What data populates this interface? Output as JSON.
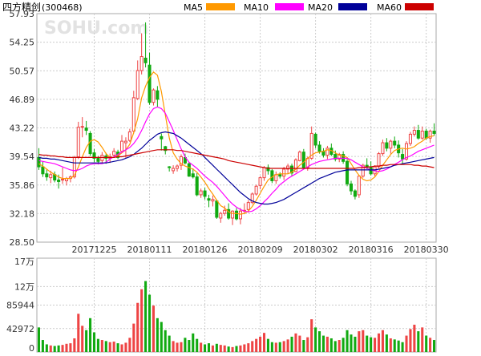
{
  "header": {
    "stock_name": "四方精创",
    "stock_code": "(300468)",
    "watermark": "SOHU.com"
  },
  "legend": [
    {
      "label": "MA5",
      "color": "#ff9900"
    },
    {
      "label": "MA10",
      "color": "#ff00ff"
    },
    {
      "label": "MA20",
      "color": "#000099"
    },
    {
      "label": "MA60",
      "color": "#cc0000"
    }
  ],
  "colors": {
    "up": "#ee4444",
    "down": "#11aa11",
    "grid": "#cccccc",
    "axis_text": "#333333"
  },
  "chart_data": [
    {
      "type": "candlestick",
      "title": "四方精创(300468)",
      "yticks": [
        "57.93",
        "54.25",
        "50.57",
        "46.89",
        "43.22",
        "39.54",
        "35.86",
        "32.18",
        "28.50"
      ],
      "ylim": [
        28.5,
        57.93
      ],
      "date_labels": [
        {
          "index": 14,
          "label": "20171225"
        },
        {
          "index": 28,
          "label": "20180111"
        },
        {
          "index": 42,
          "label": "20180126"
        },
        {
          "index": 56,
          "label": "20180209"
        },
        {
          "index": 70,
          "label": "20180302"
        },
        {
          "index": 84,
          "label": "20180316"
        },
        {
          "index": 98,
          "label": "20180330"
        }
      ],
      "ohlc": [
        [
          39.4,
          40.6,
          37.8,
          38.2
        ],
        [
          38.2,
          38.9,
          36.9,
          37.3
        ],
        [
          37.3,
          37.9,
          36.4,
          36.9
        ],
        [
          36.8,
          37.7,
          36.1,
          37.2
        ],
        [
          37.2,
          37.6,
          36.2,
          36.5
        ],
        [
          36.5,
          37.2,
          35.4,
          36.3
        ],
        [
          36.5,
          38.1,
          36.0,
          36.6
        ],
        [
          36.4,
          36.9,
          35.8,
          36.7
        ],
        [
          36.7,
          37.1,
          36.2,
          36.9
        ],
        [
          36.9,
          39.6,
          36.7,
          39.4
        ],
        [
          39.5,
          44.0,
          39.2,
          43.3
        ],
        [
          43.3,
          44.6,
          42.0,
          43.4
        ],
        [
          43.2,
          44.1,
          42.3,
          42.9
        ],
        [
          42.5,
          42.8,
          39.6,
          39.9
        ],
        [
          40.0,
          40.5,
          38.8,
          39.3
        ],
        [
          39.3,
          39.6,
          38.5,
          38.9
        ],
        [
          39.0,
          40.1,
          38.7,
          39.7
        ],
        [
          39.6,
          40.0,
          38.6,
          39.3
        ],
        [
          39.3,
          39.9,
          38.7,
          39.5
        ],
        [
          39.7,
          40.6,
          39.4,
          40.2
        ],
        [
          40.1,
          40.4,
          39.2,
          39.4
        ],
        [
          40.2,
          42.3,
          40.0,
          41.5
        ],
        [
          41.3,
          42.0,
          39.3,
          41.5
        ],
        [
          41.6,
          43.1,
          41.4,
          42.7
        ],
        [
          42.8,
          48.0,
          42.5,
          47.1
        ],
        [
          47.0,
          51.9,
          46.8,
          50.6
        ],
        [
          50.6,
          55.4,
          50.1,
          52.4
        ],
        [
          52.2,
          56.8,
          51.0,
          51.6
        ],
        [
          51.3,
          52.9,
          46.2,
          46.5
        ],
        [
          46.5,
          48.3,
          46.1,
          48.1
        ],
        [
          48.0,
          48.6,
          45.9,
          46.9
        ],
        [
          42.1,
          42.5,
          40.3,
          41.8
        ],
        [
          40.8,
          40.9,
          39.8,
          40.3
        ],
        [
          38.2,
          38.3,
          37.6,
          38.1
        ],
        [
          37.7,
          38.4,
          37.3,
          38.0
        ],
        [
          38.0,
          38.5,
          37.6,
          38.3
        ],
        [
          38.4,
          39.8,
          37.8,
          39.5
        ],
        [
          39.4,
          39.9,
          38.5,
          38.7
        ],
        [
          38.6,
          38.8,
          36.9,
          37.0
        ],
        [
          37.3,
          38.0,
          36.7,
          36.9
        ],
        [
          36.9,
          37.4,
          34.4,
          34.6
        ],
        [
          34.6,
          35.4,
          34.2,
          35.1
        ],
        [
          35.1,
          35.5,
          34.0,
          34.4
        ],
        [
          34.1,
          34.6,
          33.0,
          33.9
        ],
        [
          33.8,
          34.5,
          33.1,
          34.0
        ],
        [
          33.8,
          34.0,
          31.5,
          31.7
        ],
        [
          31.6,
          32.4,
          31.0,
          32.2
        ],
        [
          32.2,
          33.2,
          31.9,
          32.6
        ],
        [
          32.7,
          33.5,
          31.4,
          31.6
        ],
        [
          31.6,
          32.6,
          30.7,
          32.5
        ],
        [
          32.5,
          32.9,
          31.3,
          31.5
        ],
        [
          31.5,
          32.9,
          30.8,
          32.5
        ],
        [
          32.5,
          33.5,
          32.1,
          32.6
        ],
        [
          32.7,
          33.9,
          32.3,
          33.6
        ],
        [
          33.6,
          34.9,
          33.4,
          34.7
        ],
        [
          34.7,
          35.9,
          34.5,
          35.7
        ],
        [
          35.8,
          37.0,
          35.3,
          36.8
        ],
        [
          36.8,
          38.3,
          36.4,
          38.1
        ],
        [
          38.1,
          38.5,
          37.2,
          37.7
        ],
        [
          37.7,
          37.9,
          36.1,
          36.4
        ],
        [
          36.4,
          37.6,
          36.0,
          37.2
        ],
        [
          37.2,
          37.5,
          36.7,
          37.0
        ],
        [
          37.0,
          38.2,
          36.5,
          37.9
        ],
        [
          37.9,
          38.6,
          37.3,
          38.3
        ],
        [
          38.3,
          38.6,
          37.0,
          37.4
        ],
        [
          37.6,
          39.3,
          37.5,
          39.1
        ],
        [
          39.0,
          40.3,
          38.9,
          40.1
        ],
        [
          40.1,
          40.5,
          37.9,
          38.1
        ],
        [
          38.1,
          39.5,
          37.7,
          39.3
        ],
        [
          39.3,
          43.4,
          39.1,
          42.5
        ],
        [
          42.4,
          42.6,
          40.6,
          41.0
        ],
        [
          41.0,
          41.5,
          39.9,
          40.2
        ],
        [
          40.2,
          40.6,
          39.4,
          39.7
        ],
        [
          39.7,
          40.9,
          39.2,
          40.6
        ],
        [
          40.6,
          41.2,
          39.6,
          39.8
        ],
        [
          39.8,
          40.3,
          38.9,
          39.2
        ],
        [
          39.2,
          40.0,
          38.8,
          39.8
        ],
        [
          39.8,
          40.2,
          38.6,
          38.9
        ],
        [
          38.9,
          39.2,
          35.7,
          36.0
        ],
        [
          36.0,
          36.4,
          34.6,
          35.1
        ],
        [
          35.1,
          35.3,
          34.0,
          34.4
        ],
        [
          34.6,
          37.1,
          34.2,
          37.0
        ],
        [
          37.0,
          38.6,
          36.8,
          38.4
        ],
        [
          38.4,
          39.3,
          37.9,
          38.1
        ],
        [
          38.1,
          38.9,
          37.1,
          37.3
        ],
        [
          37.3,
          38.4,
          37.0,
          38.2
        ],
        [
          38.2,
          40.1,
          38.0,
          39.9
        ],
        [
          39.9,
          41.7,
          39.6,
          41.3
        ],
        [
          41.3,
          41.9,
          40.2,
          40.6
        ],
        [
          40.6,
          41.7,
          39.9,
          41.5
        ],
        [
          41.5,
          42.1,
          40.6,
          41.0
        ],
        [
          41.0,
          41.6,
          39.4,
          40.0
        ],
        [
          39.8,
          40.5,
          38.5,
          39.2
        ],
        [
          39.2,
          41.5,
          39.0,
          41.2
        ],
        [
          41.2,
          42.7,
          40.9,
          42.4
        ],
        [
          42.4,
          43.4,
          42.1,
          42.9
        ],
        [
          42.9,
          43.6,
          41.7,
          41.9
        ],
        [
          41.9,
          43.4,
          41.7,
          42.8
        ],
        [
          42.8,
          43.1,
          41.7,
          41.9
        ],
        [
          41.9,
          43.0,
          41.3,
          42.8
        ],
        [
          42.8,
          43.8,
          42.2,
          42.5
        ]
      ],
      "ma5": [
        38.6,
        38.3,
        37.9,
        37.5,
        37.2,
        36.9,
        36.7,
        36.7,
        36.7,
        37.1,
        38.2,
        39.5,
        40.7,
        41.5,
        41.7,
        41.4,
        40.7,
        39.9,
        39.4,
        39.4,
        39.6,
        40.0,
        40.4,
        41.1,
        42.6,
        44.4,
        47.1,
        48.6,
        49.7,
        50.4,
        50.0,
        47.9,
        44.9,
        41.9,
        40.0,
        39.2,
        38.6,
        38.3,
        38.1,
        37.9,
        37.5,
        36.9,
        36.2,
        35.4,
        34.7,
        33.9,
        33.2,
        32.9,
        32.4,
        32.2,
        32.2,
        32.1,
        32.2,
        32.5,
        33.1,
        33.9,
        34.8,
        35.7,
        36.5,
        36.9,
        37.2,
        37.3,
        37.3,
        37.3,
        37.5,
        37.9,
        38.4,
        38.8,
        39.3,
        39.7,
        40.0,
        40.1,
        40.2,
        40.4,
        40.3,
        40.0,
        39.7,
        39.6,
        39.4,
        38.6,
        37.8,
        37.1,
        36.6,
        36.4,
        36.5,
        36.9,
        37.6,
        38.4,
        39.1,
        39.8,
        40.3,
        40.5,
        40.6,
        40.5,
        40.6,
        40.8,
        41.2,
        41.5,
        41.9,
        42.1,
        42.2
      ],
      "ma10": [
        39.0,
        38.9,
        38.8,
        38.7,
        38.6,
        38.4,
        38.2,
        38.0,
        37.8,
        37.7,
        37.8,
        38.0,
        38.3,
        38.5,
        38.6,
        38.6,
        38.6,
        38.8,
        39.2,
        39.5,
        39.8,
        40.1,
        40.4,
        40.7,
        41.2,
        41.9,
        42.9,
        44.0,
        45.0,
        45.7,
        45.9,
        45.7,
        45.1,
        44.0,
        42.9,
        41.7,
        40.5,
        39.5,
        38.8,
        38.4,
        38.0,
        37.5,
        37.0,
        36.6,
        36.2,
        35.7,
        35.1,
        34.5,
        33.9,
        33.4,
        33.0,
        32.7,
        32.5,
        32.4,
        32.5,
        32.8,
        33.2,
        33.7,
        34.2,
        34.8,
        35.3,
        35.9,
        36.3,
        36.7,
        37.0,
        37.3,
        37.6,
        37.9,
        38.2,
        38.5,
        38.7,
        38.9,
        39.0,
        39.1,
        39.2,
        39.3,
        39.3,
        39.3,
        39.3,
        39.1,
        38.8,
        38.5,
        38.2,
        38.0,
        37.8,
        37.7,
        37.6,
        37.7,
        37.9,
        38.2,
        38.5,
        38.8,
        39.1,
        39.4,
        39.6,
        39.9,
        40.2,
        40.4,
        40.6,
        40.8,
        41.0
      ],
      "ma20": [
        39.4,
        39.3,
        39.3,
        39.2,
        39.2,
        39.1,
        39.0,
        38.9,
        38.8,
        38.7,
        38.7,
        38.7,
        38.7,
        38.7,
        38.7,
        38.7,
        38.7,
        38.7,
        38.8,
        38.9,
        39.0,
        39.1,
        39.3,
        39.5,
        39.8,
        40.2,
        40.6,
        41.1,
        41.6,
        42.0,
        42.4,
        42.6,
        42.7,
        42.6,
        42.5,
        42.2,
        41.9,
        41.5,
        41.1,
        40.7,
        40.3,
        39.9,
        39.4,
        38.9,
        38.4,
        37.9,
        37.4,
        36.9,
        36.4,
        35.9,
        35.4,
        34.9,
        34.5,
        34.1,
        33.8,
        33.6,
        33.5,
        33.4,
        33.4,
        33.5,
        33.6,
        33.8,
        34.0,
        34.3,
        34.6,
        34.9,
        35.2,
        35.5,
        35.8,
        36.1,
        36.4,
        36.7,
        36.9,
        37.1,
        37.3,
        37.5,
        37.6,
        37.7,
        37.8,
        37.8,
        37.8,
        37.8,
        37.8,
        37.8,
        37.8,
        37.8,
        37.9,
        38.0,
        38.1,
        38.2,
        38.4,
        38.5,
        38.6,
        38.7,
        38.8,
        38.9,
        39.0,
        39.1,
        39.2,
        39.3,
        39.4
      ],
      "ma60": [
        39.8,
        39.7,
        39.7,
        39.6,
        39.6,
        39.5,
        39.5,
        39.4,
        39.4,
        39.4,
        39.4,
        39.4,
        39.4,
        39.4,
        39.4,
        39.4,
        39.4,
        39.4,
        39.4,
        39.4,
        39.5,
        39.5,
        39.6,
        39.7,
        39.8,
        39.9,
        40.0,
        40.1,
        40.2,
        40.3,
        40.4,
        40.4,
        40.4,
        40.4,
        40.4,
        40.3,
        40.3,
        40.2,
        40.1,
        40.0,
        39.9,
        39.8,
        39.7,
        39.6,
        39.5,
        39.4,
        39.3,
        39.2,
        39.0,
        38.9,
        38.8,
        38.7,
        38.6,
        38.5,
        38.4,
        38.3,
        38.2,
        38.1,
        38.0,
        38.0,
        38.0,
        38.0,
        38.0,
        38.0,
        38.0,
        38.0,
        38.0,
        38.0,
        38.0,
        38.0,
        38.0,
        38.0,
        38.0,
        38.0,
        38.0,
        38.0,
        38.0,
        38.0,
        38.0,
        38.0,
        38.0,
        38.1,
        38.1,
        38.2,
        38.2,
        38.3,
        38.3,
        38.4,
        38.4,
        38.5,
        38.5,
        38.5,
        38.5,
        38.5,
        38.5,
        38.4,
        38.4,
        38.3,
        38.3,
        38.2,
        38.1
      ]
    },
    {
      "type": "bar",
      "yticks": [
        "17万",
        "12万",
        "85944",
        "42972",
        "0"
      ],
      "ylim": [
        0,
        171888
      ],
      "volume": [
        45000,
        22000,
        14000,
        12000,
        11000,
        12000,
        13000,
        15000,
        16000,
        25000,
        70000,
        48000,
        40000,
        62000,
        36000,
        24000,
        22000,
        20000,
        18000,
        19000,
        16000,
        14000,
        17000,
        26000,
        52000,
        90000,
        115000,
        130000,
        105000,
        85000,
        62000,
        55000,
        40000,
        30000,
        20000,
        17000,
        18000,
        26000,
        22000,
        34000,
        24000,
        17000,
        14000,
        16000,
        12000,
        15000,
        13000,
        12000,
        10000,
        9000,
        11000,
        12000,
        14000,
        16000,
        20000,
        24000,
        28000,
        35000,
        24000,
        18000,
        17000,
        18000,
        20000,
        23000,
        28000,
        34000,
        30000,
        22000,
        27000,
        60000,
        45000,
        38000,
        30000,
        28000,
        25000,
        20000,
        22000,
        26000,
        40000,
        32000,
        28000,
        38000,
        40000,
        30000,
        27000,
        26000,
        34000,
        40000,
        32000,
        25000,
        23000,
        21000,
        18000,
        30000,
        42000,
        50000,
        38000,
        45000,
        30000,
        26000,
        22000
      ]
    }
  ]
}
